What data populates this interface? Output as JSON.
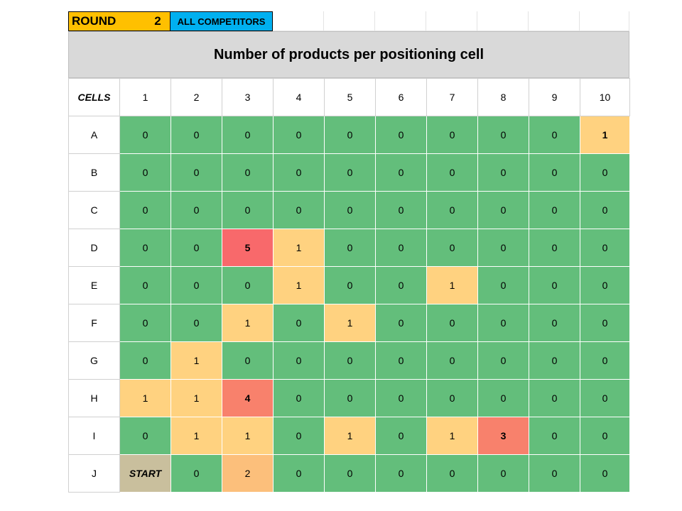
{
  "header": {
    "round_label": "ROUND",
    "round_number": "2",
    "competitors_label": "ALL COMPETITORS"
  },
  "title": "Number of products per positioning cell",
  "grid": {
    "corner_label": "CELLS",
    "columns": [
      "1",
      "2",
      "3",
      "4",
      "5",
      "6",
      "7",
      "8",
      "9",
      "10"
    ],
    "rows": [
      {
        "label": "A",
        "values": [
          "0",
          "0",
          "0",
          "0",
          "0",
          "0",
          "0",
          "0",
          "0",
          "1"
        ]
      },
      {
        "label": "B",
        "values": [
          "0",
          "0",
          "0",
          "0",
          "0",
          "0",
          "0",
          "0",
          "0",
          "0"
        ]
      },
      {
        "label": "C",
        "values": [
          "0",
          "0",
          "0",
          "0",
          "0",
          "0",
          "0",
          "0",
          "0",
          "0"
        ]
      },
      {
        "label": "D",
        "values": [
          "0",
          "0",
          "5",
          "1",
          "0",
          "0",
          "0",
          "0",
          "0",
          "0"
        ]
      },
      {
        "label": "E",
        "values": [
          "0",
          "0",
          "0",
          "1",
          "0",
          "0",
          "1",
          "0",
          "0",
          "0"
        ]
      },
      {
        "label": "F",
        "values": [
          "0",
          "0",
          "1",
          "0",
          "1",
          "0",
          "0",
          "0",
          "0",
          "0"
        ]
      },
      {
        "label": "G",
        "values": [
          "0",
          "1",
          "0",
          "0",
          "0",
          "0",
          "0",
          "0",
          "0",
          "0"
        ]
      },
      {
        "label": "H",
        "values": [
          "1",
          "1",
          "4",
          "0",
          "0",
          "0",
          "0",
          "0",
          "0",
          "0"
        ]
      },
      {
        "label": "I",
        "values": [
          "0",
          "1",
          "1",
          "0",
          "1",
          "0",
          "1",
          "3",
          "0",
          "0"
        ]
      },
      {
        "label": "J",
        "values": [
          "START",
          "0",
          "2",
          "0",
          "0",
          "0",
          "0",
          "0",
          "0",
          "0"
        ]
      }
    ]
  },
  "colors": {
    "green": "#63be7b",
    "light_orange": "#ffd280",
    "peach": "#fcbf7b",
    "salmon": "#f8816c",
    "red": "#f8696b",
    "start": "#c9bf9d",
    "round_bg": "#ffc000",
    "competitors_bg": "#00b0f0",
    "title_bg": "#d9d9d9"
  }
}
